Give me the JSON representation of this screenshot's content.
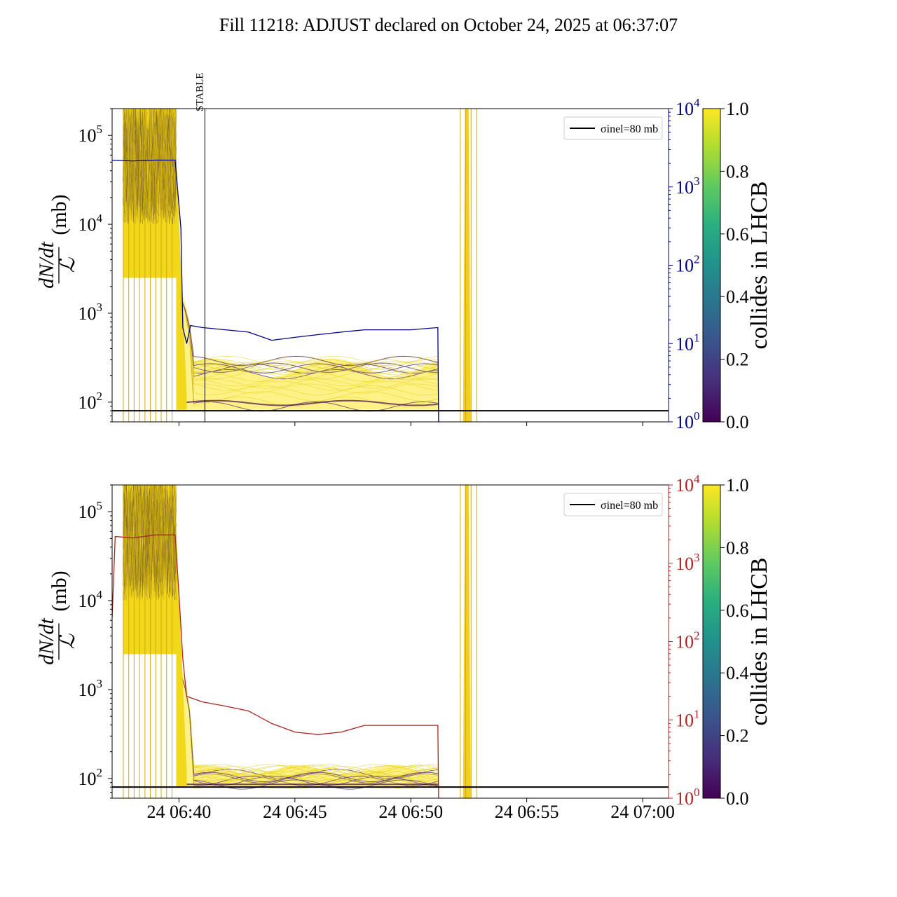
{
  "title": "Fill 11218: ADJUST declared on October 24, 2025 at 06:37:07",
  "colors": {
    "yellow": "#fde725",
    "dark": "#440154",
    "blue_axis": "#00008b",
    "red_axis": "#b22222",
    "ref_line": "#000000"
  },
  "chart_data": [
    {
      "type": "line",
      "panel": "top",
      "ylabel_num": "dN/dt",
      "ylabel_den": "ℒ",
      "ylabel_unit": "(mb)",
      "yscale": "log",
      "ylim": [
        60,
        200000
      ],
      "xlim": [
        "06:37:07",
        "07:01:07"
      ],
      "left_ticks": [
        "10^2",
        "10^3",
        "10^4",
        "10^5"
      ],
      "right_axis": {
        "color": "#00008b",
        "scale": "log",
        "ylim": [
          1,
          10000
        ],
        "ticks": [
          "10^0",
          "10^1",
          "10^2",
          "10^3",
          "10^4"
        ]
      },
      "right_series": {
        "color": "#00008b",
        "points": [
          [
            "06:37:07",
            2200
          ],
          [
            "06:38:00",
            2150
          ],
          [
            "06:39:00",
            2200
          ],
          [
            "06:39:50",
            2200
          ],
          [
            "06:40:05",
            300
          ],
          [
            "06:40:10",
            16
          ],
          [
            "06:40:20",
            10
          ],
          [
            "06:40:30",
            17
          ],
          [
            "06:41:00",
            16
          ],
          [
            "06:42:00",
            15
          ],
          [
            "06:43:00",
            14
          ],
          [
            "06:44:00",
            11
          ],
          [
            "06:45:00",
            12
          ],
          [
            "06:46:00",
            13
          ],
          [
            "06:47:00",
            14
          ],
          [
            "06:48:00",
            15
          ],
          [
            "06:50:00",
            15
          ],
          [
            "06:51:10",
            16
          ],
          [
            "06:51:12",
            1
          ]
        ]
      },
      "reference_line": {
        "label": "σinel=80 mb",
        "value": 80
      },
      "annotation": {
        "text": "STABLE",
        "x": "06:41:07"
      },
      "colorbar": {
        "label": "collides in LHCB",
        "ticks": [
          "0.0",
          "0.2",
          "0.4",
          "0.6",
          "0.8",
          "1.0"
        ],
        "range": [
          0,
          1
        ],
        "colormap": "viridis"
      },
      "legend": {
        "position": "top-right",
        "entries": [
          "σinel=80 mb"
        ]
      },
      "grid": false
    },
    {
      "type": "line",
      "panel": "bottom",
      "ylabel_num": "dN/dt",
      "ylabel_den": "ℒ",
      "ylabel_unit": "(mb)",
      "yscale": "log",
      "ylim": [
        60,
        200000
      ],
      "xlim": [
        "06:37:07",
        "07:01:07"
      ],
      "xticks": [
        "24 06:40",
        "24 06:45",
        "24 06:50",
        "24 06:55",
        "24 07:00"
      ],
      "left_ticks": [
        "10^2",
        "10^3",
        "10^4",
        "10^5"
      ],
      "right_axis": {
        "color": "#b22222",
        "scale": "log",
        "ylim": [
          1,
          10000
        ],
        "ticks": [
          "10^0",
          "10^1",
          "10^2",
          "10^3",
          "10^4"
        ]
      },
      "right_series": {
        "color": "#b22222",
        "points": [
          [
            "06:37:07",
            200
          ],
          [
            "06:37:15",
            2200
          ],
          [
            "06:38:00",
            2100
          ],
          [
            "06:39:00",
            2300
          ],
          [
            "06:39:50",
            2300
          ],
          [
            "06:40:00",
            400
          ],
          [
            "06:40:10",
            60
          ],
          [
            "06:40:20",
            20
          ],
          [
            "06:41:00",
            17
          ],
          [
            "06:42:00",
            15
          ],
          [
            "06:43:00",
            13
          ],
          [
            "06:44:00",
            9
          ],
          [
            "06:45:00",
            7
          ],
          [
            "06:46:00",
            6.5
          ],
          [
            "06:47:00",
            7
          ],
          [
            "06:48:00",
            8.5
          ],
          [
            "06:50:00",
            8.5
          ],
          [
            "06:51:10",
            8.5
          ],
          [
            "06:51:12",
            1
          ]
        ]
      },
      "reference_line": {
        "label": "σinel=80 mb",
        "value": 80
      },
      "colorbar": {
        "label": "collides in LHCB",
        "ticks": [
          "0.0",
          "0.2",
          "0.4",
          "0.6",
          "0.8",
          "1.0"
        ],
        "range": [
          0,
          1
        ],
        "colormap": "viridis"
      },
      "legend": {
        "position": "top-right",
        "entries": [
          "σinel=80 mb"
        ]
      },
      "grid": false
    }
  ]
}
